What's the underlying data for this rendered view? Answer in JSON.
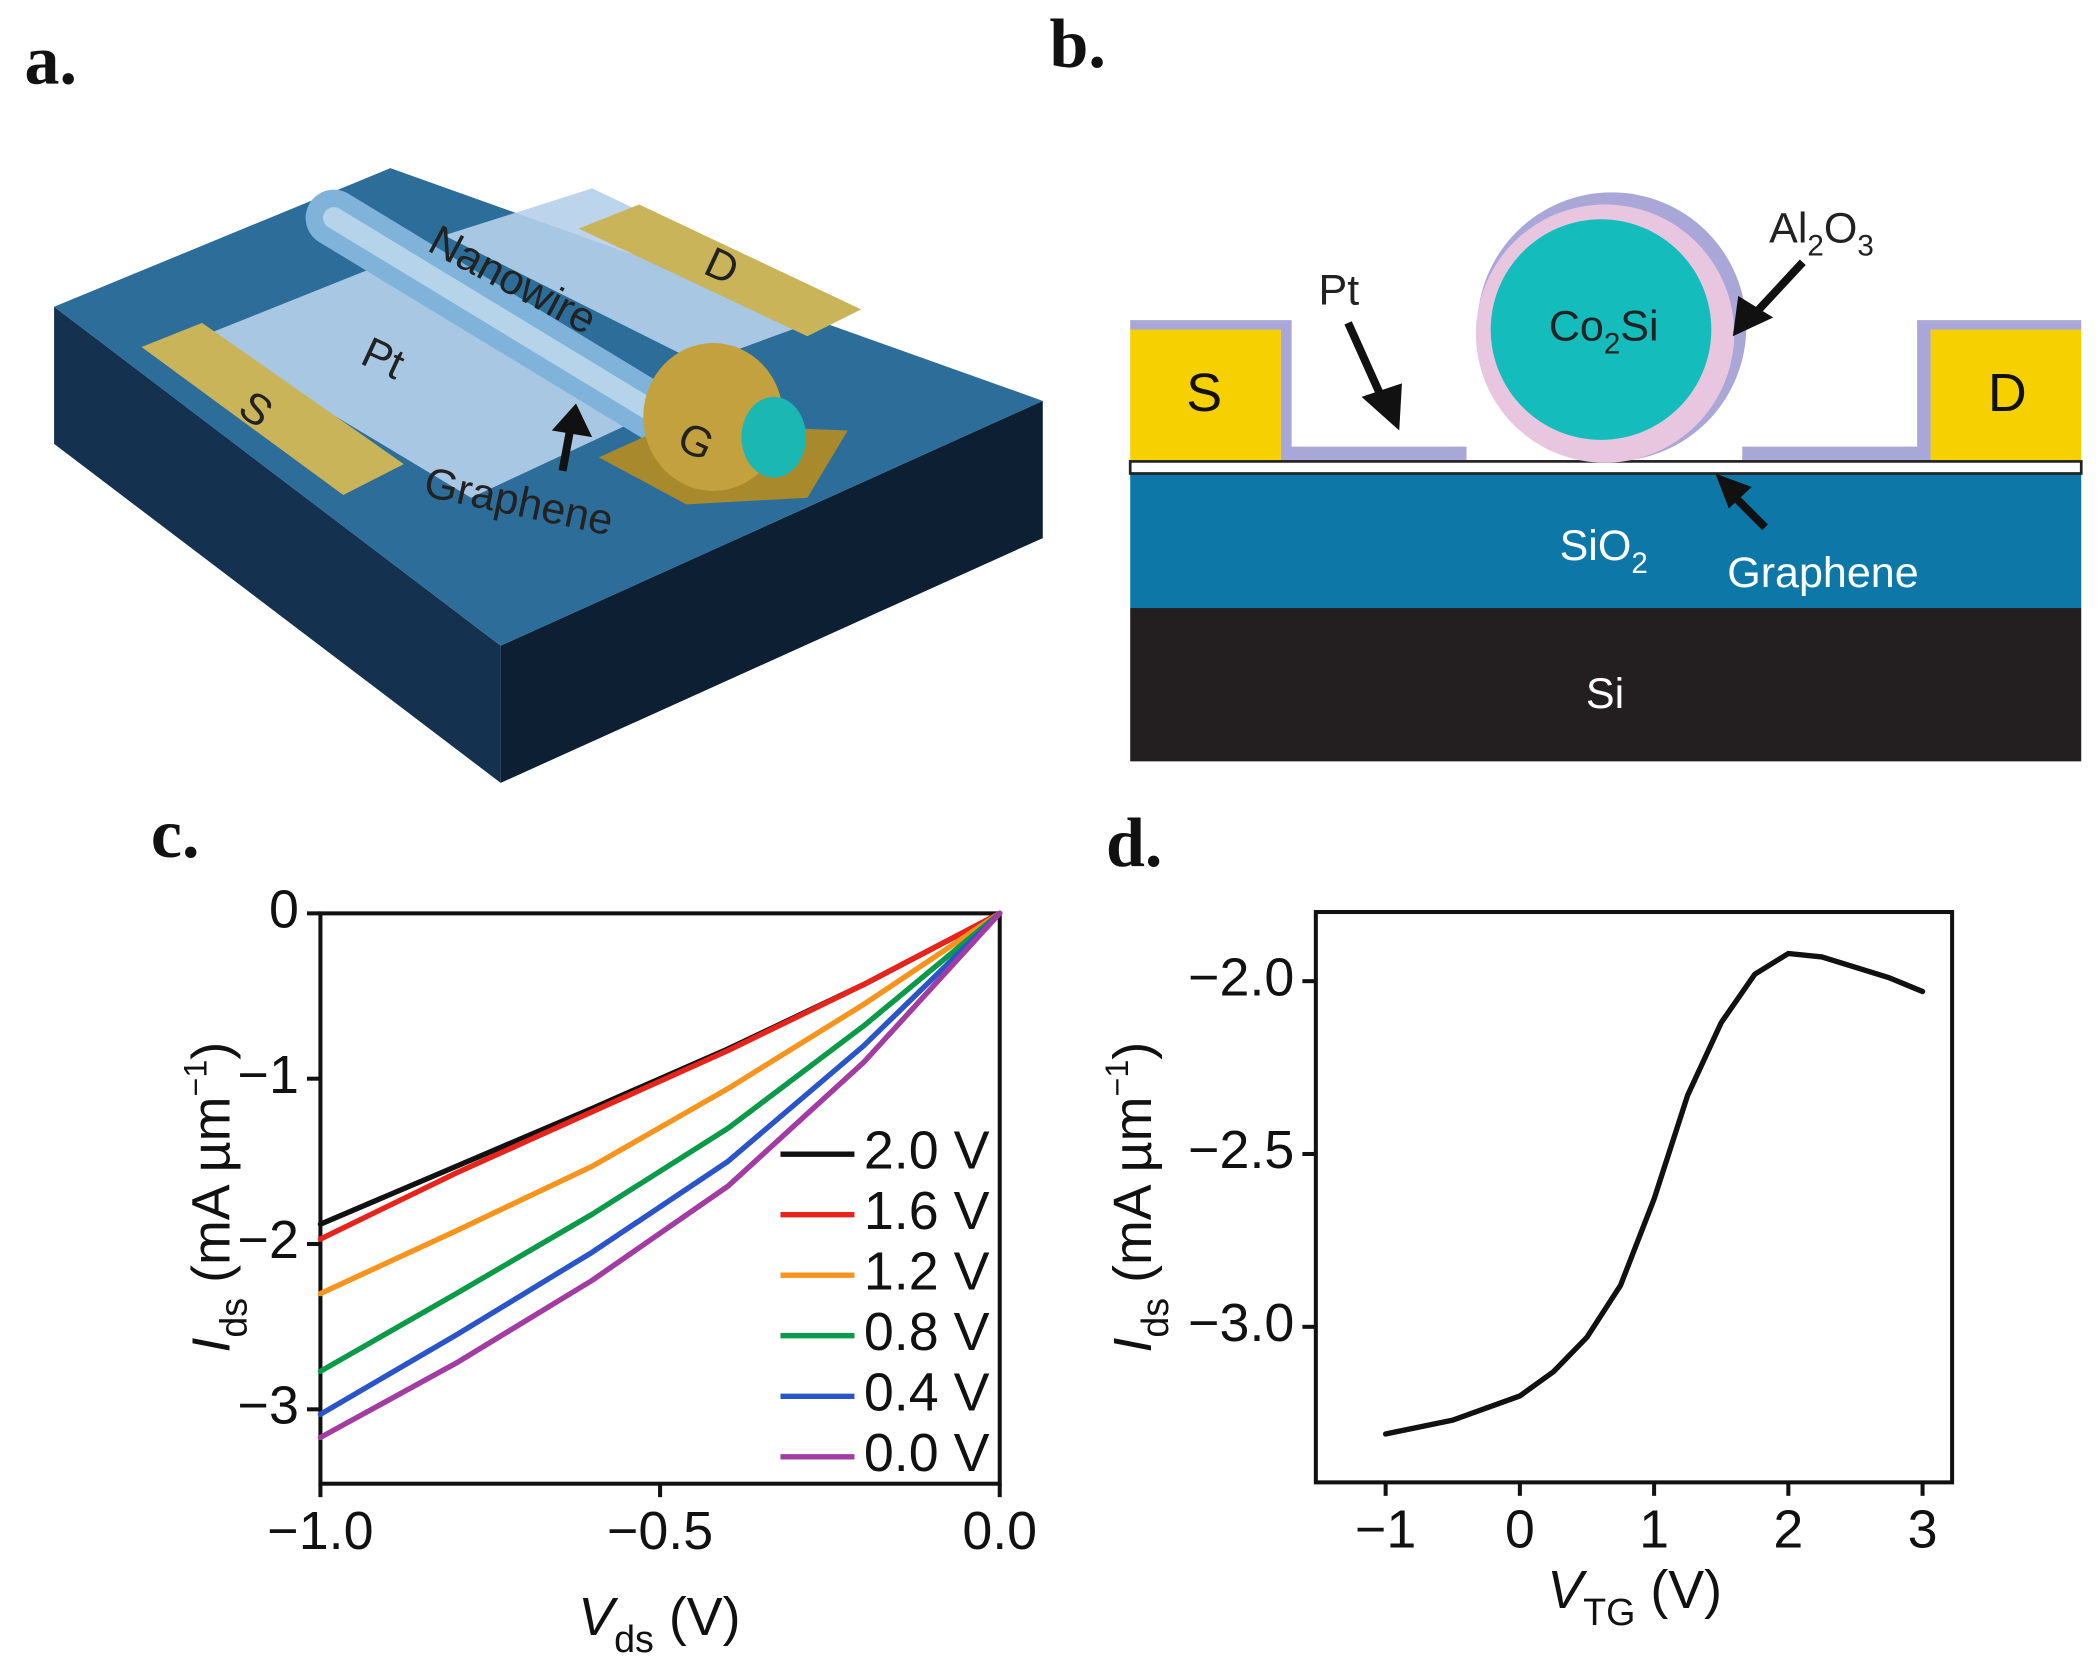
{
  "panel_labels": [
    "a.",
    "b.",
    "c.",
    "d."
  ],
  "diagram_a": {
    "labels": {
      "s": "S",
      "d": "D",
      "g": "G",
      "pt": "Pt",
      "nanowire": "Nanowire",
      "graphene": "Graphene"
    }
  },
  "diagram_b": {
    "labels": {
      "s": "S",
      "d": "D",
      "pt": "Pt",
      "al2o3": [
        "Al",
        "2",
        "O",
        "3"
      ],
      "co2si": [
        "Co",
        "2",
        "Si"
      ],
      "sio2": [
        "SiO",
        "2"
      ],
      "graphene": "Graphene",
      "si": "Si"
    }
  },
  "chart_data": [
    {
      "type": "line",
      "x_label": [
        "V",
        "ds",
        " (V)"
      ],
      "y_label": [
        "I",
        "ds",
        " (mA µm",
        "−1",
        ")"
      ],
      "x": [
        -1,
        -0.8,
        -0.6,
        -0.4,
        -0.2,
        0
      ],
      "series": [
        {
          "name": "2.0 V",
          "color": "#111111",
          "values": [
            -1.88,
            -1.53,
            -1.18,
            -0.82,
            -0.43,
            0
          ]
        },
        {
          "name": "1.6 V",
          "color": "#e8231c",
          "values": [
            -1.97,
            -1.57,
            -1.2,
            -0.83,
            -0.43,
            0
          ]
        },
        {
          "name": "1.2 V",
          "color": "#f7941d",
          "values": [
            -2.3,
            -1.92,
            -1.53,
            -1.06,
            -0.55,
            0
          ]
        },
        {
          "name": "0.8 V",
          "color": "#0a9a48",
          "values": [
            -2.77,
            -2.3,
            -1.82,
            -1.3,
            -0.68,
            0
          ]
        },
        {
          "name": "0.4 V",
          "color": "#2a55c8",
          "values": [
            -3.03,
            -2.55,
            -2.05,
            -1.5,
            -0.8,
            0
          ]
        },
        {
          "name": "0.0 V",
          "color": "#a23ca2",
          "values": [
            -3.17,
            -2.72,
            -2.22,
            -1.65,
            -0.9,
            0
          ]
        }
      ],
      "xlim": [
        -1,
        0
      ],
      "ylim": [
        -3.45,
        0
      ],
      "xticks": [
        {
          "value": -1,
          "label": "−1.0"
        },
        {
          "value": -0.5,
          "label": "−0.5"
        },
        {
          "value": 0,
          "label": "0.0"
        }
      ],
      "yticks": [
        0,
        {
          "value": -1,
          "label": "−1"
        },
        {
          "value": -2,
          "label": "−2"
        },
        {
          "value": -3,
          "label": "−3"
        }
      ],
      "legend": "lower right"
    },
    {
      "type": "line",
      "x_label": [
        "V",
        "TG",
        " (V)"
      ],
      "y_label": [
        "I",
        "ds",
        " (mA µm",
        "−1",
        ")"
      ],
      "x": [
        -1,
        -0.5,
        0,
        0.25,
        0.5,
        0.75,
        1,
        1.25,
        1.5,
        1.75,
        2,
        2.25,
        2.5,
        2.75,
        3
      ],
      "values": [
        -3.31,
        -3.27,
        -3.2,
        -3.13,
        -3.03,
        -2.88,
        -2.63,
        -2.33,
        -2.12,
        -1.98,
        -1.92,
        -1.93,
        -1.96,
        -1.99,
        -2.03
      ],
      "color": "#111111",
      "xlim": [
        -1.52,
        3.22
      ],
      "ylim": [
        -3.45,
        -1.8
      ],
      "xticks": [
        {
          "value": -1,
          "label": "−1"
        },
        0,
        1,
        2,
        3
      ],
      "yticks": [
        {
          "value": -2,
          "label": "−2.0"
        },
        {
          "value": -2.5,
          "label": "−2.5"
        },
        {
          "value": -3,
          "label": "−3.0"
        }
      ]
    }
  ]
}
